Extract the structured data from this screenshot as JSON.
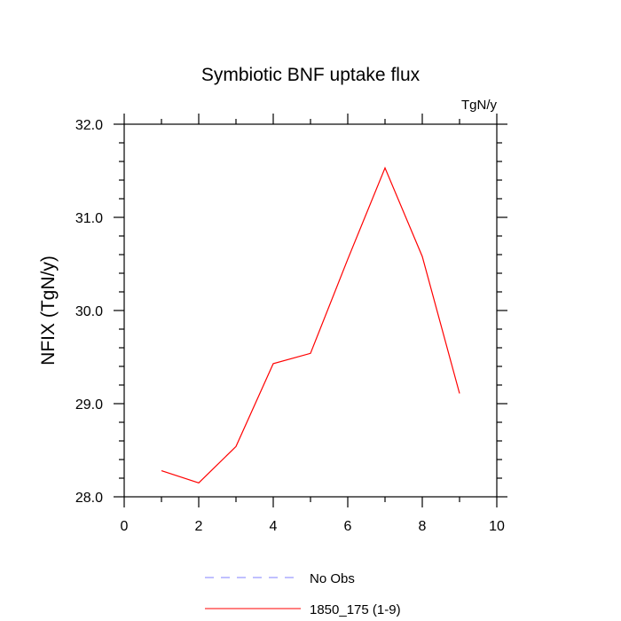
{
  "chart_data": {
    "type": "line",
    "title": "Symbiotic BNF uptake flux",
    "units_label": "TgN/y",
    "ylabel": "NFIX  (TgN/y)",
    "xlabel": "",
    "xlim": [
      0,
      10
    ],
    "ylim": [
      28.0,
      32.0
    ],
    "x_ticks": [
      0,
      2,
      4,
      6,
      8,
      10
    ],
    "x_tick_labels": [
      "0",
      "2",
      "4",
      "6",
      "8",
      "10"
    ],
    "y_ticks": [
      28.0,
      29.0,
      30.0,
      31.0,
      32.0
    ],
    "y_tick_labels": [
      "28.0",
      "29.0",
      "30.0",
      "31.0",
      "32.0"
    ],
    "grid": false,
    "legend_position": "bottom",
    "legend": [
      {
        "name": "No Obs",
        "color": "#8080ff",
        "style": "dashed"
      },
      {
        "name": "1850_175 (1-9)",
        "color": "#ff0000",
        "style": "solid"
      }
    ],
    "series": [
      {
        "name": "1850_175 (1-9)",
        "color": "#ff0000",
        "x": [
          1,
          2,
          3,
          4,
          5,
          6,
          7,
          8,
          9
        ],
        "values": [
          28.28,
          28.15,
          28.54,
          29.43,
          29.54,
          30.55,
          31.53,
          30.58,
          29.11
        ]
      }
    ]
  }
}
